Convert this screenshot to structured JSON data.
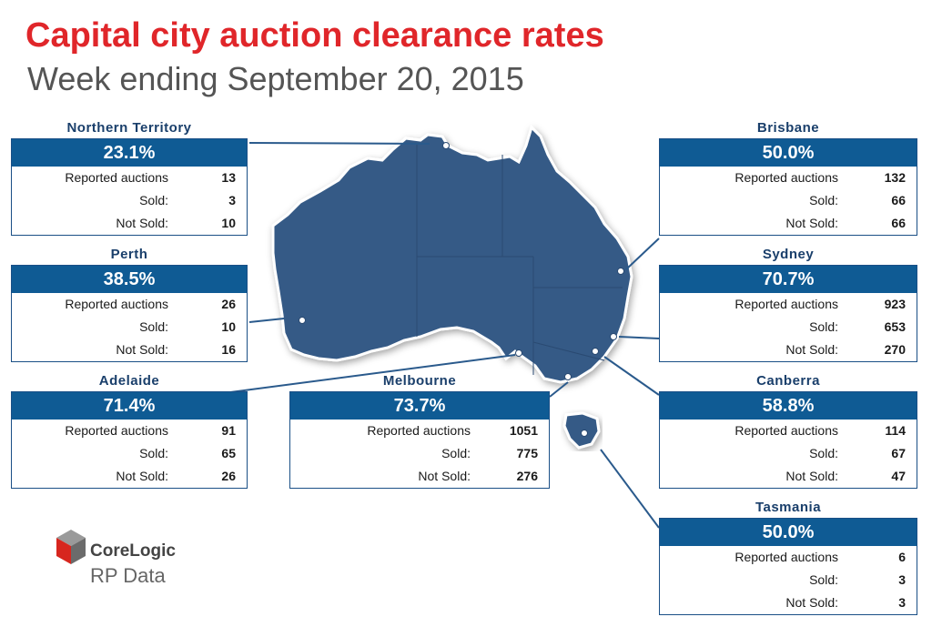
{
  "title": "Capital city auction clearance rates",
  "subtitle": "Week ending September 20, 2015",
  "logo": {
    "brand": "CoreLogic",
    "sub": "RP Data"
  },
  "row_labels": {
    "reported": "Reported auctions",
    "sold": "Sold:",
    "not_sold": "Not Sold:"
  },
  "cities": {
    "nt": {
      "name": "Northern Territory",
      "rate": "23.1%",
      "reported": "13",
      "sold": "3",
      "not_sold": "10"
    },
    "perth": {
      "name": "Perth",
      "rate": "38.5%",
      "reported": "26",
      "sold": "10",
      "not_sold": "16"
    },
    "adelaide": {
      "name": "Adelaide",
      "rate": "71.4%",
      "reported": "91",
      "sold": "65",
      "not_sold": "26"
    },
    "melbourne": {
      "name": "Melbourne",
      "rate": "73.7%",
      "reported": "1051",
      "sold": "775",
      "not_sold": "276"
    },
    "brisbane": {
      "name": "Brisbane",
      "rate": "50.0%",
      "reported": "132",
      "sold": "66",
      "not_sold": "66"
    },
    "sydney": {
      "name": "Sydney",
      "rate": "70.7%",
      "reported": "923",
      "sold": "653",
      "not_sold": "270"
    },
    "canberra": {
      "name": "Canberra",
      "rate": "58.8%",
      "reported": "114",
      "sold": "67",
      "not_sold": "47"
    },
    "tasmania": {
      "name": "Tasmania",
      "rate": "50.0%",
      "reported": "6",
      "sold": "3",
      "not_sold": "3"
    }
  },
  "colors": {
    "title": "#e0262a",
    "box_header": "#0f5b94",
    "map_fill": "#365a86"
  }
}
